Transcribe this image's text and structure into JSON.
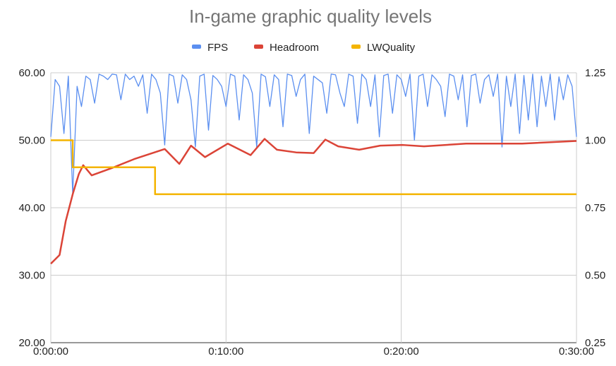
{
  "chart_data": {
    "type": "line",
    "title": "In-game graphic quality levels",
    "legend_position": "top",
    "grid": true,
    "x_ticks": [
      "0:00:00",
      "0:10:00",
      "0:20:00",
      "0:30:00"
    ],
    "xlim": [
      "0:00:00",
      "0:30:00"
    ],
    "y_left": {
      "ticks": [
        "20.00",
        "30.00",
        "40.00",
        "50.00",
        "60.00"
      ],
      "ylim": [
        20,
        60
      ]
    },
    "y_right": {
      "ticks": [
        "0.25",
        "0.50",
        "0.75",
        "1.00",
        "1.25"
      ],
      "ylim": [
        0.25,
        1.25
      ]
    },
    "series": [
      {
        "name": "FPS",
        "color": "#5b8ff0",
        "axis": "left",
        "x_start": "0:00:00",
        "x_end": "0:30:00",
        "values": [
          50.5,
          59,
          58,
          51,
          59.5,
          42,
          58,
          55,
          59.5,
          59,
          55.5,
          59.8,
          59.5,
          59,
          59.8,
          59.7,
          56,
          59.8,
          59,
          59.5,
          58,
          59.7,
          54,
          59.8,
          59,
          57,
          49.3,
          59.8,
          59.5,
          55.5,
          59.7,
          59,
          56,
          49,
          59.5,
          59.8,
          51.5,
          59.6,
          59,
          58,
          55,
          59.8,
          59.5,
          53,
          59.7,
          59,
          57,
          49,
          59.8,
          59.4,
          55,
          59.7,
          59,
          52,
          59.8,
          59.6,
          56.5,
          59,
          59.8,
          51,
          59.5,
          59,
          58.5,
          54,
          59.8,
          59.7,
          57,
          55,
          59.8,
          59.5,
          52.5,
          59.8,
          59,
          55,
          59.7,
          50.5,
          59.6,
          59.8,
          54,
          59.7,
          59,
          56.5,
          59.8,
          50,
          59.5,
          59.8,
          55,
          59.7,
          59,
          58,
          53.5,
          59.8,
          59.5,
          56,
          59.7,
          52,
          59.6,
          59.8,
          55.5,
          59,
          59.7,
          56.5,
          59.8,
          49,
          59.5,
          55,
          59.8,
          51,
          59.6,
          53,
          59.8,
          52,
          59.5,
          55,
          59.8,
          53,
          59.4,
          56,
          59.7,
          58,
          50.5
        ]
      },
      {
        "name": "Headroom",
        "color": "#db4437",
        "axis": "left",
        "points": [
          [
            "0:00:00",
            31.7
          ],
          [
            "0:00:30",
            33
          ],
          [
            "0:00:51",
            38
          ],
          [
            "0:01:15",
            42
          ],
          [
            "0:01:36",
            45
          ],
          [
            "0:01:51",
            46.3
          ],
          [
            "0:02:20",
            44.8
          ],
          [
            "0:03:30",
            45.9
          ],
          [
            "0:04:45",
            47.2
          ],
          [
            "0:06:30",
            48.7
          ],
          [
            "0:07:20",
            46.5
          ],
          [
            "0:08:00",
            49.2
          ],
          [
            "0:08:48",
            47.5
          ],
          [
            "0:10:06",
            49.5
          ],
          [
            "0:11:24",
            47.8
          ],
          [
            "0:12:12",
            50.2
          ],
          [
            "0:12:54",
            48.6
          ],
          [
            "0:14:00",
            48.2
          ],
          [
            "0:15:00",
            48.1
          ],
          [
            "0:15:40",
            50.1
          ],
          [
            "0:16:24",
            49.1
          ],
          [
            "0:17:36",
            48.6
          ],
          [
            "0:18:48",
            49.2
          ],
          [
            "0:20:06",
            49.3
          ],
          [
            "0:21:18",
            49.1
          ],
          [
            "0:23:42",
            49.5
          ],
          [
            "0:26:54",
            49.5
          ],
          [
            "0:30:00",
            49.9
          ]
        ]
      },
      {
        "name": "LWQuality",
        "color": "#f4b400",
        "axis": "right",
        "points": [
          [
            "0:00:00",
            1.0
          ],
          [
            "0:01:15",
            1.0
          ],
          [
            "0:01:15",
            0.9
          ],
          [
            "0:05:57",
            0.9
          ],
          [
            "0:05:57",
            0.8
          ],
          [
            "0:30:00",
            0.8
          ]
        ]
      }
    ]
  }
}
